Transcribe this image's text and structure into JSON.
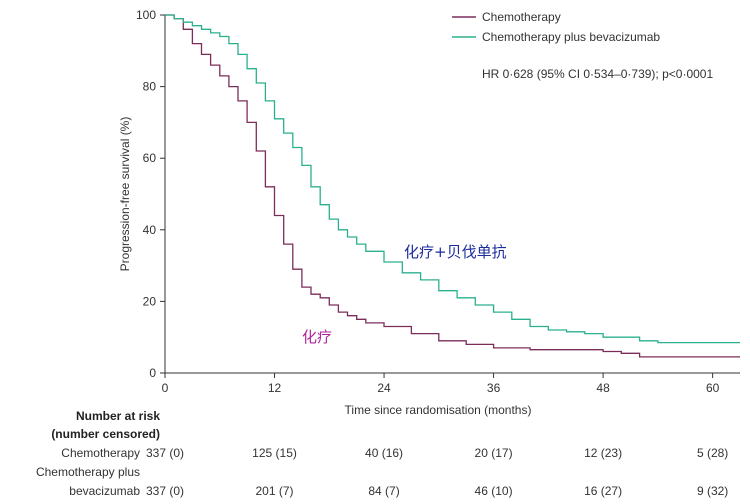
{
  "chart_data": {
    "type": "line",
    "title": "",
    "xlabel": "Time since randomisation (months)",
    "ylabel": "Progression-free survival (%)",
    "xlim": [
      0,
      63
    ],
    "ylim": [
      0,
      100
    ],
    "xticks": [
      "0",
      "12",
      "24",
      "36",
      "48",
      "60"
    ],
    "yticks": [
      "0",
      "20",
      "40",
      "60",
      "80",
      "100"
    ],
    "grid": false,
    "legend_position": "top-right",
    "series": [
      {
        "name": "Chemotherapy",
        "color": "#7b2d5a",
        "points": [
          [
            0,
            100
          ],
          [
            1,
            99
          ],
          [
            2,
            96
          ],
          [
            3,
            92
          ],
          [
            4,
            89
          ],
          [
            5,
            86
          ],
          [
            6,
            83
          ],
          [
            7,
            80
          ],
          [
            8,
            76
          ],
          [
            9,
            70
          ],
          [
            10,
            62
          ],
          [
            11,
            52
          ],
          [
            12,
            44
          ],
          [
            13,
            36
          ],
          [
            14,
            29
          ],
          [
            15,
            24
          ],
          [
            16,
            22
          ],
          [
            17,
            21
          ],
          [
            18,
            19
          ],
          [
            19,
            17
          ],
          [
            20,
            16
          ],
          [
            21,
            15
          ],
          [
            22,
            14
          ],
          [
            24,
            13
          ],
          [
            27,
            11
          ],
          [
            30,
            9
          ],
          [
            33,
            8
          ],
          [
            36,
            7
          ],
          [
            40,
            6.5
          ],
          [
            45,
            6.5
          ],
          [
            48,
            6
          ],
          [
            50,
            5.5
          ],
          [
            52,
            4.5
          ],
          [
            55,
            4.5
          ],
          [
            63,
            4.5
          ]
        ]
      },
      {
        "name": "Chemotherapy plus bevacizumab",
        "color": "#2bb08f",
        "points": [
          [
            0,
            100
          ],
          [
            1,
            99
          ],
          [
            2,
            98
          ],
          [
            3,
            97
          ],
          [
            4,
            96
          ],
          [
            5,
            95
          ],
          [
            6,
            94
          ],
          [
            7,
            92
          ],
          [
            8,
            89
          ],
          [
            9,
            85
          ],
          [
            10,
            81
          ],
          [
            11,
            76
          ],
          [
            12,
            71
          ],
          [
            13,
            67
          ],
          [
            14,
            63
          ],
          [
            15,
            58
          ],
          [
            16,
            52
          ],
          [
            17,
            47
          ],
          [
            18,
            43
          ],
          [
            19,
            40
          ],
          [
            20,
            38
          ],
          [
            21,
            36
          ],
          [
            22,
            34
          ],
          [
            24,
            31
          ],
          [
            26,
            28
          ],
          [
            28,
            26
          ],
          [
            30,
            23
          ],
          [
            32,
            21
          ],
          [
            34,
            19
          ],
          [
            36,
            17
          ],
          [
            38,
            15
          ],
          [
            40,
            13
          ],
          [
            42,
            12
          ],
          [
            44,
            11.5
          ],
          [
            46,
            11
          ],
          [
            48,
            10
          ],
          [
            50,
            10
          ],
          [
            52,
            9
          ],
          [
            54,
            8.5
          ],
          [
            58,
            8.5
          ],
          [
            63,
            8.5
          ]
        ]
      }
    ],
    "annotations": [
      {
        "text": "化疗+贝伐单抗",
        "color": "#1b2a9c",
        "x": 39,
        "y": 34
      },
      {
        "text": "化疗",
        "color": "#b0259d",
        "x": 18,
        "y": 10
      }
    ],
    "hr_text": "HR 0·628 (95% CI 0·534–0·739); p<0·0001"
  },
  "risk_table": {
    "heading_line1": "Number at risk",
    "heading_line2": "(number censored)",
    "rows": [
      {
        "label_line1": "Chemotherapy",
        "label_line2": "",
        "values": [
          "337 (0)",
          "125 (15)",
          "40 (16)",
          "20 (17)",
          "12 (23)",
          "5 (28)"
        ]
      },
      {
        "label_line1": "Chemotherapy plus",
        "label_line2": "bevacizumab",
        "values": [
          "337 (0)",
          "201 (7)",
          "84 (7)",
          "46 (10)",
          "16 (27)",
          "9 (32)"
        ]
      }
    ]
  }
}
